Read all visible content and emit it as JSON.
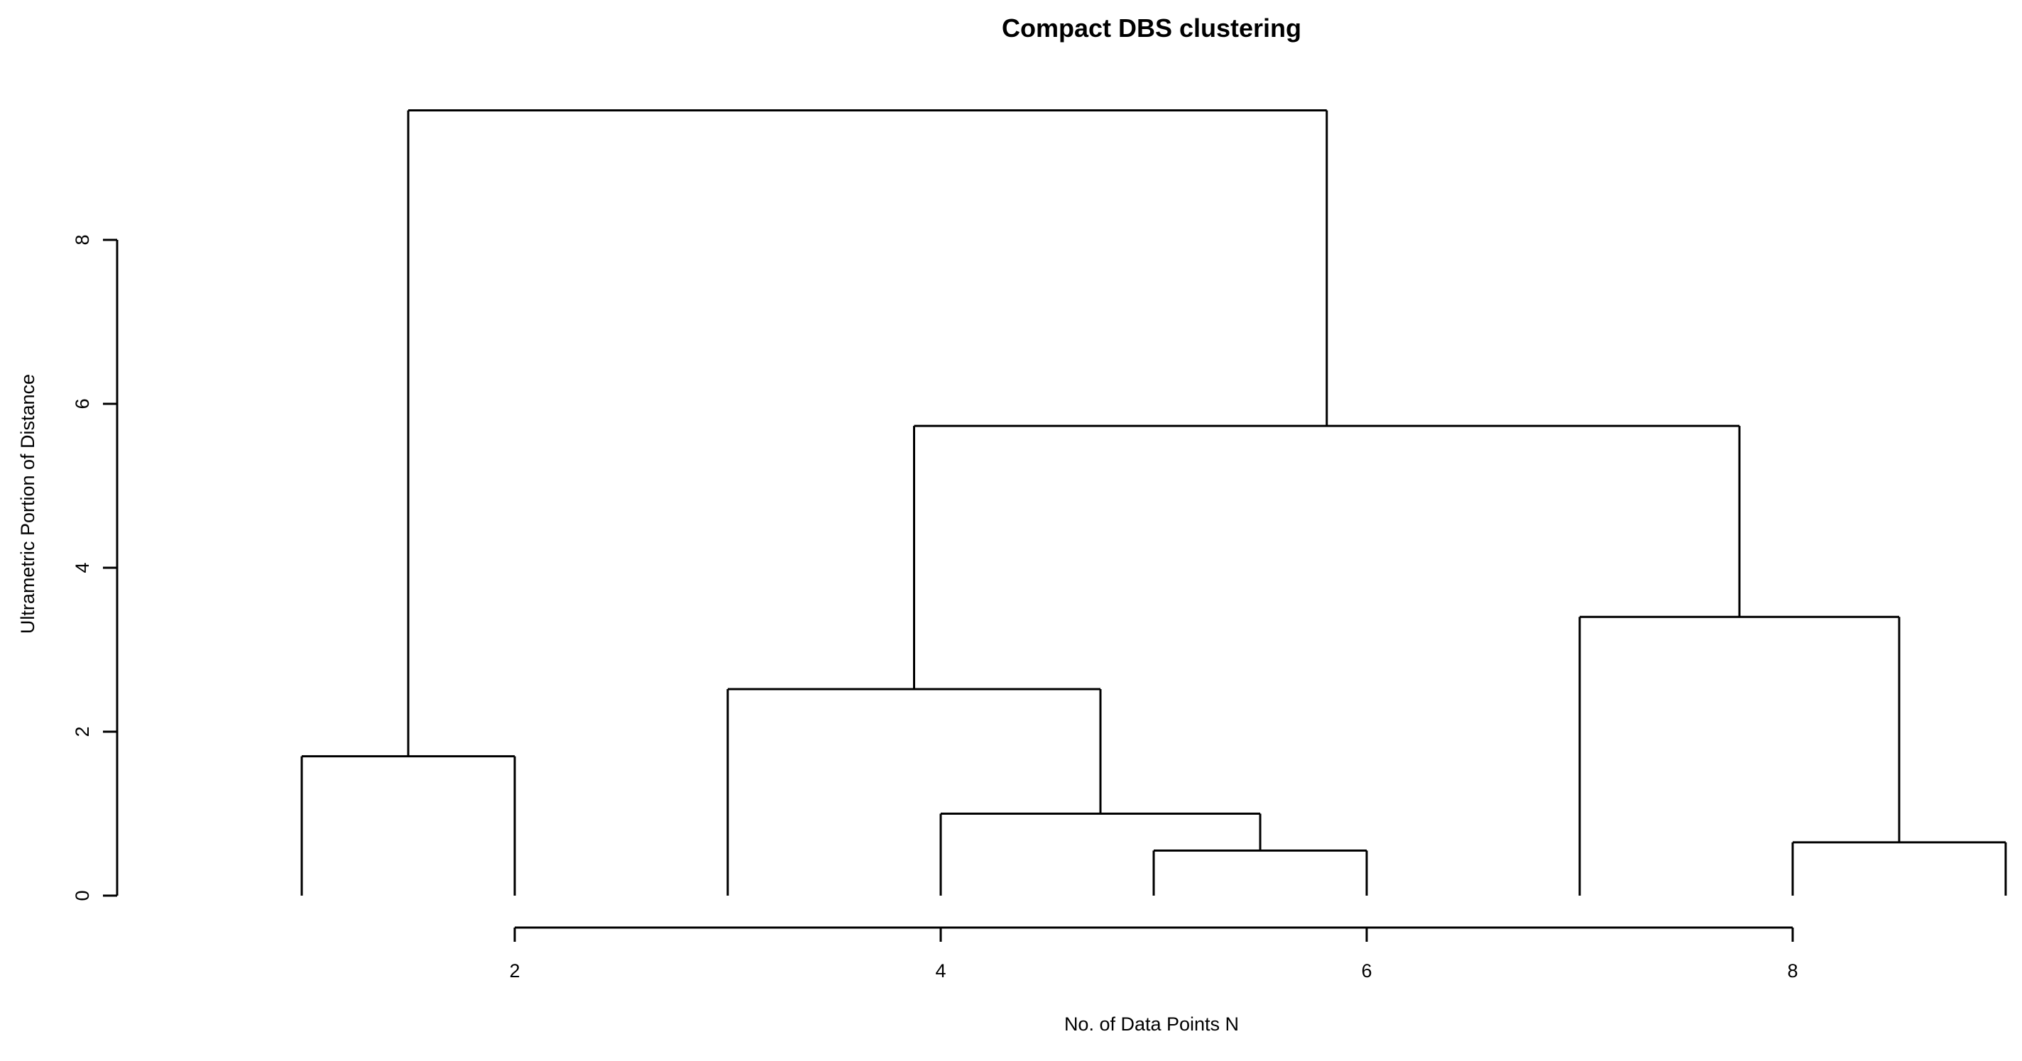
{
  "chart_data": {
    "type": "dendrogram",
    "title": "Compact DBS clustering",
    "xlabel": "No. of Data Points N",
    "ylabel": "Ultrametric Portion of Distance",
    "xlim": [
      0.25,
      9
    ],
    "ylim": [
      0,
      9.6
    ],
    "x_ticks": [
      2,
      4,
      6,
      8
    ],
    "y_ticks": [
      0,
      2,
      4,
      6,
      8
    ],
    "grid": false,
    "leaves": [
      1,
      2,
      3,
      4,
      5,
      6,
      7,
      8,
      9
    ],
    "merges": [
      {
        "left_x": 5,
        "right_x": 6,
        "height": 0.55
      },
      {
        "left_x": 8,
        "right_x": 9,
        "height": 0.65
      },
      {
        "left_x": 4,
        "right_x": 5.5,
        "height": 1.0
      },
      {
        "left_x": 1,
        "right_x": 2,
        "height": 1.7
      },
      {
        "left_x": 3,
        "right_x": 4.75,
        "height": 2.52
      },
      {
        "left_x": 7,
        "right_x": 8.5,
        "height": 3.4
      },
      {
        "left_x": 3.875,
        "right_x": 7.75,
        "height": 5.73
      },
      {
        "left_x": 1.5,
        "right_x": 5.8125,
        "height": 9.58
      }
    ],
    "line_color": "#000000"
  }
}
